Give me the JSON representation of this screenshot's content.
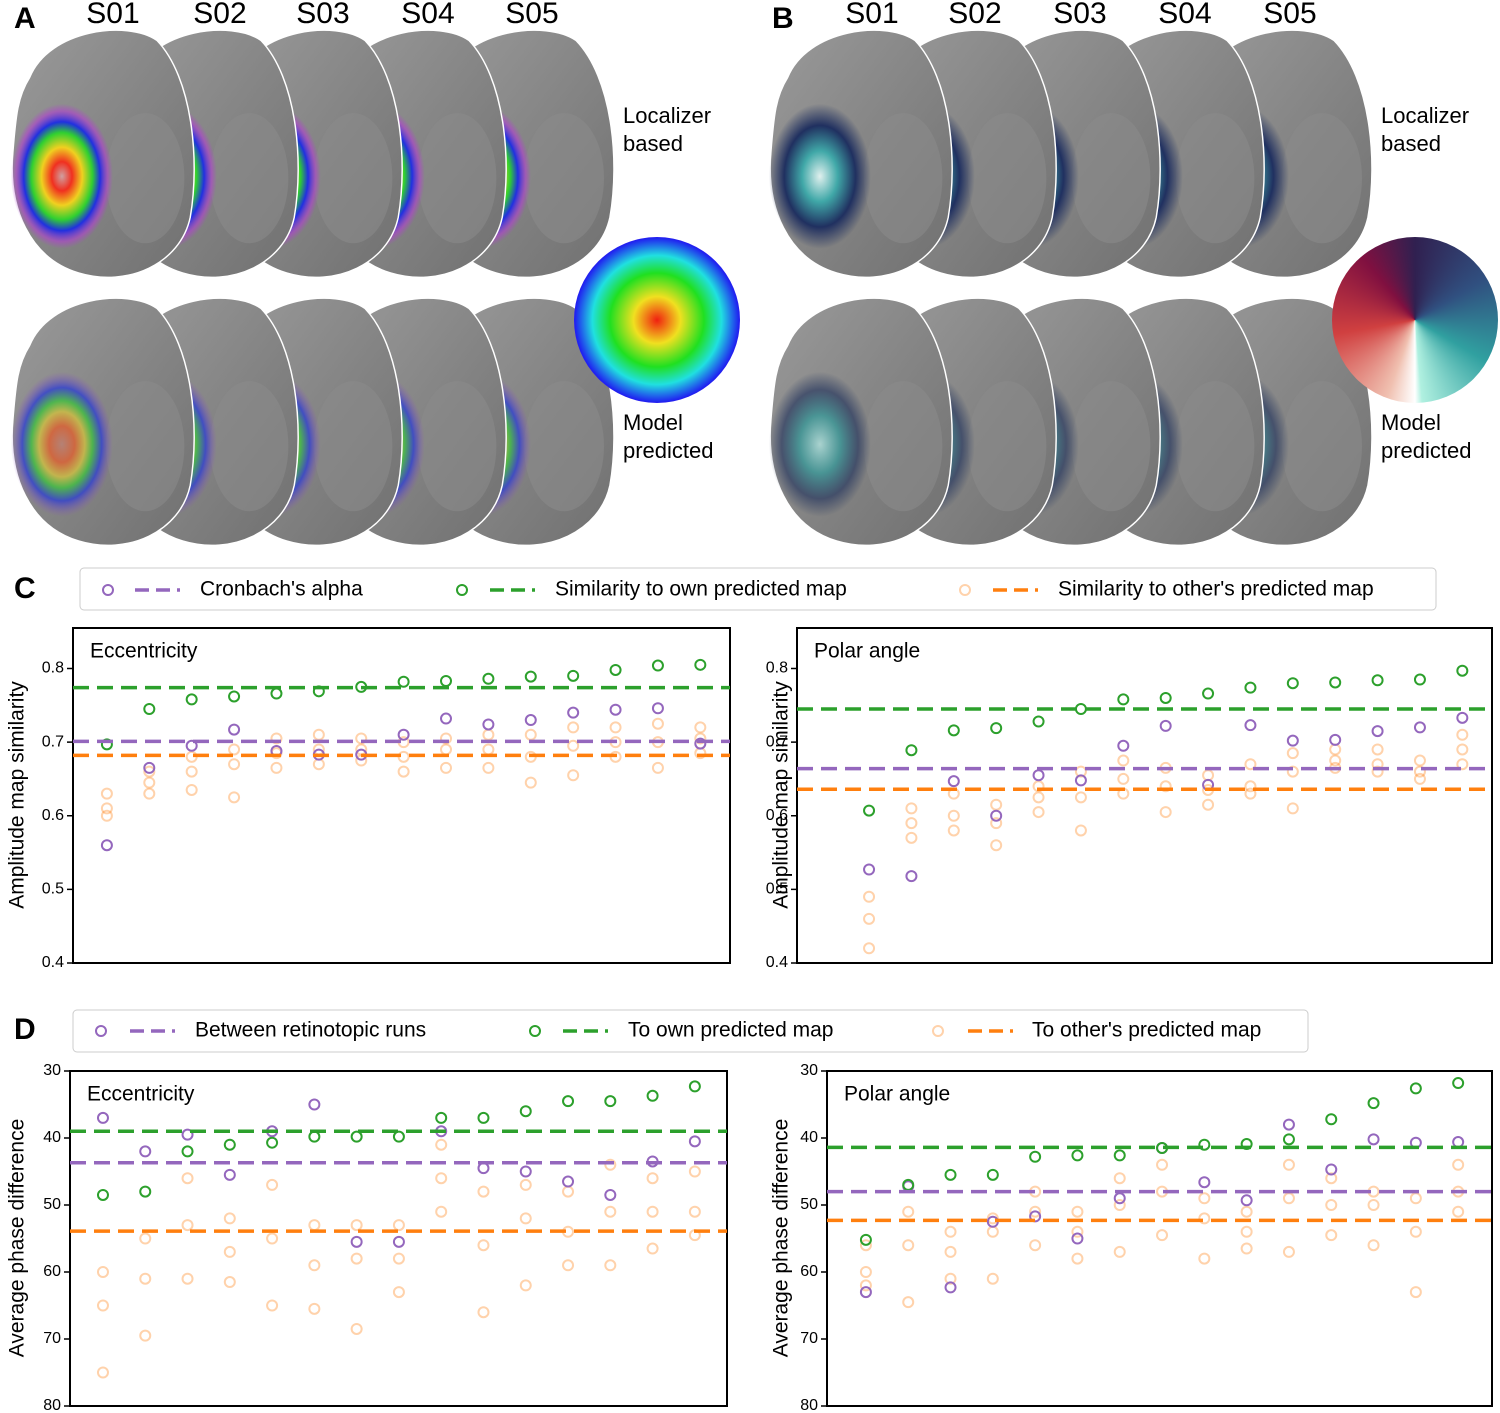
{
  "brain_panels": [
    {
      "label": "A",
      "subjects": [
        "S01",
        "S02",
        "S03",
        "S04",
        "S05"
      ],
      "rows": [
        "Localizer based",
        "Model predicted"
      ]
    },
    {
      "label": "B",
      "subjects": [
        "S01",
        "S02",
        "S03",
        "S04",
        "S05"
      ],
      "rows": [
        "Localizer based",
        "Model predicted"
      ]
    }
  ],
  "chart_data": [
    {
      "type": "scatter",
      "panel_label": "C",
      "ylim": [
        0.4,
        0.855
      ],
      "yticks": [
        0.4,
        0.5,
        0.6,
        0.7,
        0.8
      ],
      "y_inverted": false,
      "series": [
        {
          "name": "Cronbach's alpha",
          "color": "#9467bd"
        },
        {
          "name": "Similarity to own predicted map",
          "color": "#2ca02c"
        },
        {
          "name": "Similarity to other's predicted map",
          "color": "#ff7f0e"
        }
      ],
      "subplots": [
        {
          "title": "Eccentricity",
          "y_label": "Amplitude map similarity",
          "xlim": [
            0.2,
            15.7
          ],
          "series": [
            {
              "x": [
                1,
                2,
                3,
                4,
                5,
                6,
                7,
                8,
                9,
                10,
                11,
                12,
                13,
                14,
                15
              ],
              "values": [
                0.56,
                0.665,
                0.695,
                0.717,
                0.688,
                0.683,
                0.683,
                0.71,
                0.732,
                0.724,
                0.73,
                0.74,
                0.744,
                0.746,
                0.698
              ],
              "mean": 0.701
            },
            {
              "x": [
                1,
                2,
                3,
                4,
                5,
                6,
                7,
                8,
                9,
                10,
                11,
                12,
                13,
                14,
                15
              ],
              "values": [
                0.697,
                0.745,
                0.758,
                0.762,
                0.766,
                0.769,
                0.775,
                0.782,
                0.783,
                0.786,
                0.789,
                0.79,
                0.798,
                0.804,
                0.805
              ],
              "mean": 0.774
            },
            {
              "x": [
                1,
                1,
                1,
                2,
                2,
                2,
                3,
                3,
                3,
                4,
                4,
                4,
                5,
                5,
                5,
                6,
                6,
                6,
                7,
                7,
                7,
                8,
                8,
                8,
                9,
                9,
                9,
                10,
                10,
                10,
                11,
                11,
                11,
                12,
                12,
                12,
                13,
                13,
                13,
                14,
                14,
                14,
                15,
                15,
                15
              ],
              "values": [
                0.63,
                0.61,
                0.6,
                0.66,
                0.645,
                0.63,
                0.68,
                0.66,
                0.635,
                0.69,
                0.67,
                0.625,
                0.705,
                0.685,
                0.665,
                0.71,
                0.69,
                0.67,
                0.705,
                0.69,
                0.675,
                0.7,
                0.68,
                0.66,
                0.705,
                0.69,
                0.665,
                0.71,
                0.69,
                0.665,
                0.71,
                0.68,
                0.645,
                0.72,
                0.695,
                0.655,
                0.72,
                0.7,
                0.68,
                0.725,
                0.7,
                0.665,
                0.72,
                0.705,
                0.685
              ],
              "mean": 0.682
            }
          ]
        },
        {
          "title": "Polar angle",
          "y_label": "Amplitude map similarity",
          "xlim": [
            -0.7,
            15.7
          ],
          "series": [
            {
              "x": [
                1,
                2,
                3,
                4,
                5,
                6,
                7,
                8,
                9,
                10,
                11,
                12,
                13,
                14,
                15
              ],
              "values": [
                0.527,
                0.518,
                0.647,
                0.6,
                0.655,
                0.648,
                0.695,
                0.722,
                0.642,
                0.723,
                0.702,
                0.703,
                0.715,
                0.72,
                0.733
              ],
              "mean": 0.664
            },
            {
              "x": [
                1,
                2,
                3,
                4,
                5,
                6,
                7,
                8,
                9,
                10,
                11,
                12,
                13,
                14,
                15
              ],
              "values": [
                0.607,
                0.689,
                0.716,
                0.719,
                0.728,
                0.745,
                0.758,
                0.76,
                0.766,
                0.774,
                0.78,
                0.781,
                0.784,
                0.785,
                0.797
              ],
              "mean": 0.745
            },
            {
              "x": [
                1,
                1,
                1,
                2,
                2,
                2,
                3,
                3,
                3,
                4,
                4,
                4,
                5,
                5,
                5,
                6,
                6,
                6,
                7,
                7,
                7,
                8,
                8,
                8,
                9,
                9,
                9,
                10,
                10,
                10,
                11,
                11,
                11,
                12,
                12,
                12,
                13,
                13,
                13,
                14,
                14,
                14,
                15,
                15,
                15
              ],
              "values": [
                0.49,
                0.46,
                0.42,
                0.61,
                0.59,
                0.57,
                0.63,
                0.6,
                0.58,
                0.615,
                0.59,
                0.56,
                0.64,
                0.625,
                0.605,
                0.66,
                0.625,
                0.58,
                0.675,
                0.65,
                0.63,
                0.665,
                0.64,
                0.605,
                0.655,
                0.635,
                0.615,
                0.67,
                0.64,
                0.63,
                0.685,
                0.66,
                0.61,
                0.69,
                0.675,
                0.665,
                0.69,
                0.67,
                0.66,
                0.675,
                0.66,
                0.65,
                0.71,
                0.69,
                0.67
              ],
              "mean": 0.636
            }
          ]
        }
      ]
    },
    {
      "type": "scatter",
      "panel_label": "D",
      "ylim": [
        30,
        80
      ],
      "yticks": [
        30,
        40,
        50,
        60,
        70,
        80
      ],
      "y_inverted": true,
      "series": [
        {
          "name": "Between retinotopic runs",
          "color": "#9467bd"
        },
        {
          "name": "To own predicted map",
          "color": "#2ca02c"
        },
        {
          "name": "To other's predicted map",
          "color": "#ff7f0e"
        }
      ],
      "subplots": [
        {
          "title": "Eccentricity",
          "y_label": "Average phase difference",
          "xlim": [
            0.22,
            15.76
          ],
          "series": [
            {
              "x": [
                1,
                2,
                3,
                4,
                5,
                6,
                7,
                8,
                9,
                10,
                11,
                12,
                13,
                14,
                15
              ],
              "values": [
                37,
                42,
                39.5,
                45.5,
                39,
                35,
                55.5,
                55.5,
                39,
                44.5,
                45,
                46.5,
                48.5,
                43.5,
                40.5
              ],
              "mean": 43.7
            },
            {
              "x": [
                1,
                2,
                3,
                4,
                5,
                6,
                7,
                8,
                9,
                10,
                11,
                12,
                13,
                14,
                15
              ],
              "values": [
                48.5,
                48,
                42,
                41,
                40.7,
                39.8,
                39.8,
                39.8,
                37,
                37,
                36,
                34.5,
                34.5,
                33.7,
                32.3
              ],
              "mean": 39
            },
            {
              "x": [
                1,
                1,
                1,
                2,
                2,
                2,
                3,
                3,
                3,
                4,
                4,
                4,
                5,
                5,
                5,
                6,
                6,
                6,
                7,
                7,
                7,
                8,
                8,
                8,
                9,
                9,
                9,
                10,
                10,
                10,
                11,
                11,
                11,
                12,
                12,
                12,
                13,
                13,
                13,
                14,
                14,
                14,
                15,
                15,
                15
              ],
              "values": [
                60,
                65,
                75,
                55,
                61,
                69.5,
                46,
                53,
                61,
                52,
                57,
                61.5,
                47,
                55,
                65,
                53,
                59,
                65.5,
                53,
                58,
                68.5,
                53,
                58,
                63,
                41,
                46,
                51,
                48,
                56,
                66,
                47,
                52,
                62,
                48,
                54,
                59,
                44,
                51,
                59,
                46,
                51,
                56.5,
                45,
                51,
                54.5
              ],
              "mean": 53.9
            }
          ]
        },
        {
          "title": "Polar angle",
          "y_label": "Average phase difference",
          "xlim": [
            0.08,
            15.8
          ],
          "series": [
            {
              "x": [
                1,
                2,
                3,
                4,
                5,
                6,
                7,
                8,
                9,
                10,
                11,
                12,
                13,
                14,
                15
              ],
              "values": [
                63,
                47.2,
                62.3,
                52.5,
                51.7,
                55,
                49,
                41.5,
                46.6,
                49.3,
                38,
                44.7,
                40.2,
                40.7,
                40.6
              ],
              "mean": 48
            },
            {
              "x": [
                1,
                2,
                3,
                4,
                5,
                6,
                7,
                8,
                9,
                10,
                11,
                12,
                13,
                14,
                15
              ],
              "values": [
                55.2,
                47,
                45.5,
                45.5,
                42.8,
                42.6,
                42.6,
                41.5,
                41,
                40.9,
                40.2,
                37.2,
                34.8,
                32.6,
                31.8
              ],
              "mean": 41.4
            },
            {
              "x": [
                1,
                1,
                1,
                2,
                2,
                2,
                3,
                3,
                3,
                4,
                4,
                4,
                5,
                5,
                5,
                6,
                6,
                6,
                7,
                7,
                7,
                8,
                8,
                8,
                9,
                9,
                9,
                10,
                10,
                10,
                11,
                11,
                11,
                12,
                12,
                12,
                13,
                13,
                13,
                14,
                14,
                14,
                15,
                15,
                15
              ],
              "values": [
                56,
                60,
                62,
                51,
                56,
                64.5,
                54,
                57,
                61,
                52,
                54,
                61,
                48,
                51,
                56,
                51,
                54,
                58,
                46,
                50,
                57,
                44,
                48,
                54.5,
                49,
                52,
                58,
                51,
                54,
                56.5,
                44,
                49,
                57,
                46,
                50,
                54.5,
                48,
                50,
                56,
                49,
                54,
                63,
                44,
                48,
                51
              ],
              "mean": 52.3
            }
          ]
        }
      ]
    }
  ]
}
